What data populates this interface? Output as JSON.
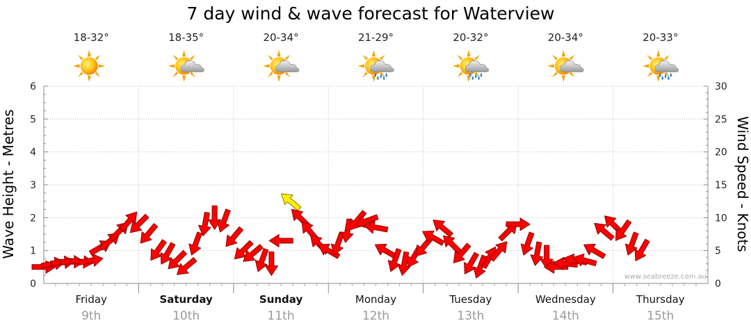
{
  "chart_data": {
    "type": "line",
    "title": "7 day wind & wave forecast for Waterview",
    "y_left_label": "Wave Height - Metres",
    "y_right_label": "Wind Speed - Knots",
    "y_left_ticks": [
      "0",
      "1",
      "2",
      "3",
      "4",
      "5",
      "6"
    ],
    "y_right_ticks": [
      "0",
      "5",
      "10",
      "15",
      "20",
      "25",
      "30"
    ],
    "ylim_left": [
      0,
      6
    ],
    "ylim_right": [
      0,
      30
    ],
    "grid": true,
    "credit": "www.seabreeze.com.au",
    "days": [
      {
        "name": "Friday",
        "date": "9th",
        "temp": "18-32°",
        "weather": "sunny",
        "bold": false
      },
      {
        "name": "Saturday",
        "date": "10th",
        "temp": "18-35°",
        "weather": "partly-cloudy",
        "bold": true
      },
      {
        "name": "Sunday",
        "date": "11th",
        "temp": "20-34°",
        "weather": "partly-cloudy",
        "bold": true
      },
      {
        "name": "Monday",
        "date": "12th",
        "temp": "21-29°",
        "weather": "showers",
        "bold": false
      },
      {
        "name": "Tuesday",
        "date": "13th",
        "temp": "20-32°",
        "weather": "showers",
        "bold": false
      },
      {
        "name": "Wednesday",
        "date": "14th",
        "temp": "20-34°",
        "weather": "partly-cloudy",
        "bold": false
      },
      {
        "name": "Thursday",
        "date": "15th",
        "temp": "20-33°",
        "weather": "showers",
        "bold": false
      }
    ],
    "x_unit": "days from start of Friday",
    "wind_series": {
      "name": "Wind Speed",
      "points": [
        {
          "x": 0.0,
          "kts": 2.5,
          "dir": 90
        },
        {
          "x": 0.1,
          "kts": 3,
          "dir": 80
        },
        {
          "x": 0.2,
          "kts": 3.2,
          "dir": 85
        },
        {
          "x": 0.3,
          "kts": 3.3,
          "dir": 90
        },
        {
          "x": 0.4,
          "kts": 3.3,
          "dir": 95
        },
        {
          "x": 0.5,
          "kts": 3.5,
          "dir": 80
        },
        {
          "x": 0.6,
          "kts": 5.5,
          "dir": 60
        },
        {
          "x": 0.7,
          "kts": 6.5,
          "dir": 50
        },
        {
          "x": 0.8,
          "kts": 8,
          "dir": 45
        },
        {
          "x": 0.9,
          "kts": 9.5,
          "dir": 40
        },
        {
          "x": 1.0,
          "kts": 9,
          "dir": 225
        },
        {
          "x": 1.1,
          "kts": 7.5,
          "dir": 220
        },
        {
          "x": 1.2,
          "kts": 5,
          "dir": 215
        },
        {
          "x": 1.3,
          "kts": 4.5,
          "dir": 210
        },
        {
          "x": 1.4,
          "kts": 3.5,
          "dir": 225
        },
        {
          "x": 1.5,
          "kts": 2.5,
          "dir": 230
        },
        {
          "x": 1.6,
          "kts": 6,
          "dir": 200
        },
        {
          "x": 1.7,
          "kts": 9,
          "dir": 190
        },
        {
          "x": 1.8,
          "kts": 10,
          "dir": 180
        },
        {
          "x": 1.9,
          "kts": 9.5,
          "dir": 200
        },
        {
          "x": 2.0,
          "kts": 7,
          "dir": 220
        },
        {
          "x": 2.1,
          "kts": 5,
          "dir": 225
        },
        {
          "x": 2.2,
          "kts": 4.5,
          "dir": 230
        },
        {
          "x": 2.3,
          "kts": 3.5,
          "dir": 200
        },
        {
          "x": 2.4,
          "kts": 3,
          "dir": 180
        },
        {
          "x": 2.5,
          "kts": 6.5,
          "dir": 270
        },
        {
          "x": 2.6,
          "kts": 12.5,
          "dir": 310
        },
        {
          "x": 2.7,
          "kts": 10,
          "dir": 315
        },
        {
          "x": 2.8,
          "kts": 8,
          "dir": 320
        },
        {
          "x": 2.9,
          "kts": 6,
          "dir": 315
        },
        {
          "x": 3.0,
          "kts": 5,
          "dir": 300
        },
        {
          "x": 3.1,
          "kts": 6,
          "dir": 200
        },
        {
          "x": 3.2,
          "kts": 8,
          "dir": 190
        },
        {
          "x": 3.3,
          "kts": 9.5,
          "dir": 220
        },
        {
          "x": 3.4,
          "kts": 9.5,
          "dir": 250
        },
        {
          "x": 3.5,
          "kts": 8.5,
          "dir": 280
        },
        {
          "x": 3.6,
          "kts": 5,
          "dir": 300
        },
        {
          "x": 3.7,
          "kts": 3.5,
          "dir": 200
        },
        {
          "x": 3.8,
          "kts": 3,
          "dir": 190
        },
        {
          "x": 3.9,
          "kts": 4,
          "dir": 210
        },
        {
          "x": 4.0,
          "kts": 5.5,
          "dir": 220
        },
        {
          "x": 4.1,
          "kts": 7,
          "dir": 300
        },
        {
          "x": 4.2,
          "kts": 8.5,
          "dir": 310
        },
        {
          "x": 4.3,
          "kts": 6,
          "dir": 315
        },
        {
          "x": 4.4,
          "kts": 4.5,
          "dir": 220
        },
        {
          "x": 4.5,
          "kts": 3,
          "dir": 210
        },
        {
          "x": 4.6,
          "kts": 2.5,
          "dir": 200
        },
        {
          "x": 4.7,
          "kts": 4,
          "dir": 30
        },
        {
          "x": 4.8,
          "kts": 5,
          "dir": 40
        },
        {
          "x": 4.9,
          "kts": 8,
          "dir": 45
        },
        {
          "x": 5.0,
          "kts": 9,
          "dir": 90
        },
        {
          "x": 5.1,
          "kts": 6,
          "dir": 200
        },
        {
          "x": 5.2,
          "kts": 4.5,
          "dir": 190
        },
        {
          "x": 5.3,
          "kts": 4,
          "dir": 180
        },
        {
          "x": 5.4,
          "kts": 2.5,
          "dir": 270
        },
        {
          "x": 5.5,
          "kts": 3,
          "dir": 275
        },
        {
          "x": 5.6,
          "kts": 3.5,
          "dir": 280
        },
        {
          "x": 5.7,
          "kts": 3.5,
          "dir": 285
        },
        {
          "x": 5.8,
          "kts": 5,
          "dir": 300
        },
        {
          "x": 5.9,
          "kts": 8,
          "dir": 310
        },
        {
          "x": 6.0,
          "kts": 9,
          "dir": 315
        },
        {
          "x": 6.1,
          "kts": 8,
          "dir": 215
        },
        {
          "x": 6.2,
          "kts": 6,
          "dir": 200
        },
        {
          "x": 6.3,
          "kts": 5,
          "dir": 210
        }
      ]
    }
  }
}
